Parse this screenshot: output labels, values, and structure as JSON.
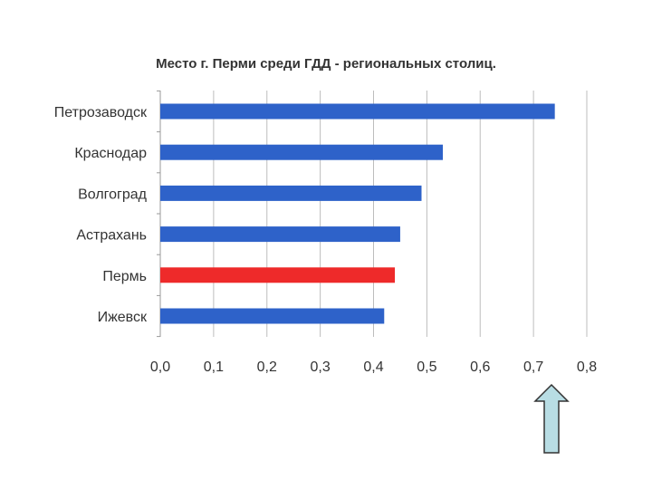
{
  "chart_data": {
    "type": "bar",
    "orientation": "horizontal",
    "title": "Место г. Перми среди ГДД - региональных столиц.",
    "categories": [
      "Петрозаводск",
      "Краснодар",
      "Волгоград",
      "Астрахань",
      "Пермь",
      "Ижевск"
    ],
    "values": [
      0.74,
      0.53,
      0.49,
      0.45,
      0.44,
      0.42
    ],
    "bar_colors": [
      "#2e62c9",
      "#2e62c9",
      "#2e62c9",
      "#2e62c9",
      "#ee2a2a",
      "#2e62c9"
    ],
    "xlim": [
      0.0,
      0.8
    ],
    "x_ticks": [
      "0,0",
      "0,1",
      "0,2",
      "0,3",
      "0,4",
      "0,5",
      "0,6",
      "0,7",
      "0,8"
    ],
    "grid": "vertical"
  },
  "annotation": {
    "arrow_icon": "up-arrow-icon",
    "arrow_color": "#b8dde4"
  }
}
